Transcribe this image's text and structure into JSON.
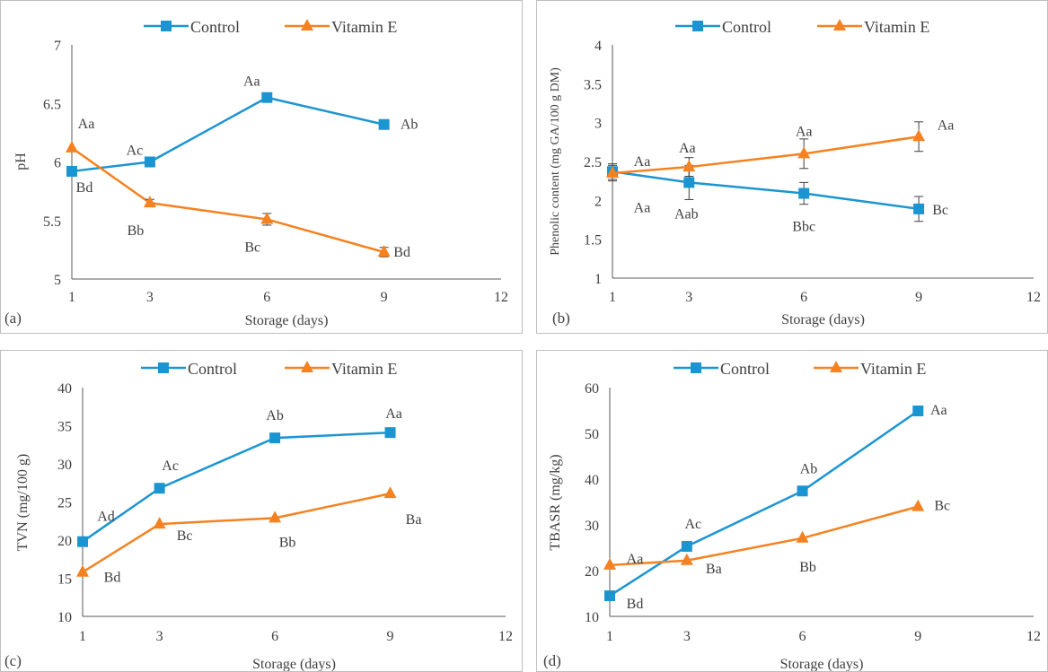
{
  "colors": {
    "control": "#1b95d2",
    "vitamin_e": "#f58220",
    "axis": "#595959",
    "text": "#404040",
    "border": "#bfbfbf"
  },
  "chart_data": [
    {
      "type": "line",
      "panel_label": "(a)",
      "xlabel": "Storage (days)",
      "ylabel": "pH",
      "xlim": [
        1,
        12
      ],
      "ylim": [
        5,
        7
      ],
      "x_ticks": [
        1,
        3,
        6,
        9,
        12
      ],
      "y_ticks": [
        "5",
        "5.5",
        "6",
        "6.5",
        "7"
      ],
      "legend_position": "top",
      "grid": false,
      "x": [
        1,
        3,
        6,
        9
      ],
      "series": [
        {
          "name": "Control",
          "marker": "square",
          "values": [
            5.92,
            6.0,
            6.55,
            6.32
          ],
          "errors": [
            0,
            0,
            0,
            0
          ],
          "labels": [
            "Bd",
            "Ac",
            "Aa",
            "Ab"
          ]
        },
        {
          "name": "Vitamin E",
          "marker": "triangle",
          "values": [
            6.12,
            5.65,
            5.51,
            5.23
          ],
          "errors": [
            0,
            0.03,
            0.05,
            0.04
          ],
          "labels": [
            "Aa",
            "Bb",
            "Bc",
            "Bd"
          ]
        }
      ]
    },
    {
      "type": "line",
      "panel_label": "(b)",
      "xlabel": "Storage (days)",
      "ylabel": "Phenolic content (mg GA/100 g DM)",
      "xlim": [
        1,
        12
      ],
      "ylim": [
        1,
        4
      ],
      "x_ticks": [
        1,
        3,
        6,
        9,
        12
      ],
      "y_ticks": [
        "1",
        "1.5",
        "2",
        "2.5",
        "3",
        "3.5",
        "4"
      ],
      "legend_position": "top",
      "grid": false,
      "x": [
        1,
        3,
        6,
        9
      ],
      "series": [
        {
          "name": "Control",
          "marker": "square",
          "values": [
            2.37,
            2.23,
            2.09,
            1.89
          ],
          "errors": [
            0.1,
            0.22,
            0.14,
            0.16
          ],
          "labels": [
            "Aa",
            "Aab",
            "Bbc",
            "Bc"
          ]
        },
        {
          "name": "Vitamin E",
          "marker": "triangle",
          "values": [
            2.35,
            2.43,
            2.6,
            2.82
          ],
          "errors": [
            0.1,
            0.12,
            0.19,
            0.19
          ],
          "labels": [
            "Aa",
            "Aa",
            "Aa",
            "Aa"
          ]
        }
      ]
    },
    {
      "type": "line",
      "panel_label": "(c)",
      "xlabel": "Storage (days)",
      "ylabel": "TVN (mg/100 g)",
      "xlim": [
        1,
        12
      ],
      "ylim": [
        10,
        40
      ],
      "x_ticks": [
        1,
        3,
        6,
        9,
        12
      ],
      "y_ticks": [
        "10",
        "15",
        "20",
        "25",
        "30",
        "35",
        "40"
      ],
      "legend_position": "top",
      "grid": false,
      "x": [
        1,
        3,
        6,
        9
      ],
      "series": [
        {
          "name": "Control",
          "marker": "square",
          "values": [
            19.8,
            26.8,
            33.4,
            34.1
          ],
          "errors": [
            0,
            0,
            0,
            0
          ],
          "labels": [
            "Ad",
            "Ac",
            "Ab",
            "Aa"
          ]
        },
        {
          "name": "Vitamin E",
          "marker": "triangle",
          "values": [
            15.8,
            22.1,
            22.9,
            26.1
          ],
          "errors": [
            0,
            0,
            0,
            0
          ],
          "labels": [
            "Bd",
            "Bc",
            "Bb",
            "Ba"
          ]
        }
      ]
    },
    {
      "type": "line",
      "panel_label": "(d)",
      "xlabel": "Storage (days)",
      "ylabel": "TBASR (mg/kg)",
      "xlim": [
        1,
        12
      ],
      "ylim": [
        10,
        60
      ],
      "x_ticks": [
        1,
        3,
        6,
        9,
        12
      ],
      "y_ticks": [
        "10",
        "20",
        "30",
        "40",
        "50",
        "60"
      ],
      "legend_position": "top",
      "grid": false,
      "x": [
        1,
        3,
        6,
        9
      ],
      "series": [
        {
          "name": "Control",
          "marker": "square",
          "values": [
            14.5,
            25.3,
            37.4,
            54.9
          ],
          "errors": [
            0,
            0,
            0,
            0
          ],
          "labels": [
            "Bd",
            "Ac",
            "Ab",
            "Aa"
          ]
        },
        {
          "name": "Vitamin E",
          "marker": "triangle",
          "values": [
            21.2,
            22.2,
            27.1,
            34.0
          ],
          "errors": [
            0,
            0,
            0,
            0
          ],
          "labels": [
            "Aa",
            "Ba",
            "Bb",
            "Bc"
          ]
        }
      ]
    }
  ]
}
